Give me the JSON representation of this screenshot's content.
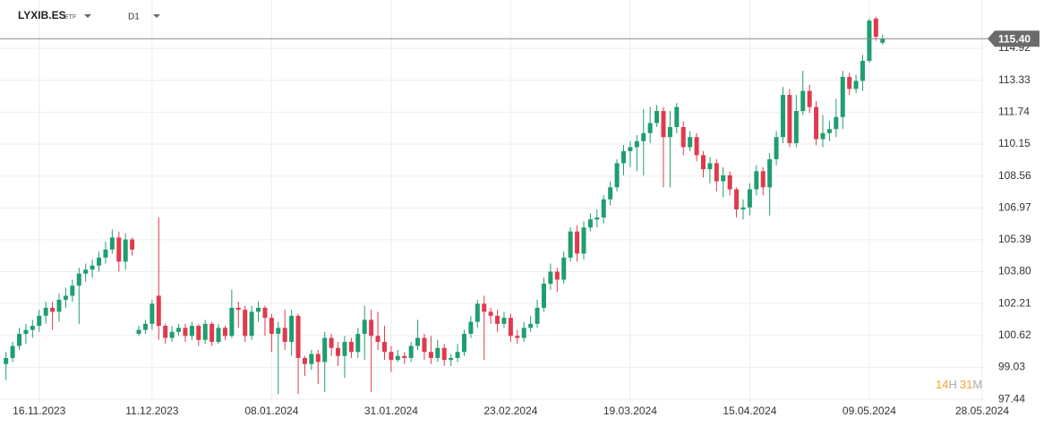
{
  "chart_data": {
    "type": "candlestick",
    "symbol": "LYXIB.ES",
    "asset_class": "ETF",
    "timeframe": "D1",
    "up_color": "#1f9e70",
    "down_color": "#e03a4e",
    "grid": true,
    "last_price": {
      "value": 115.4,
      "label": "115.40"
    },
    "countdown": {
      "hours": "14",
      "hours_unit": "H",
      "minutes": "31",
      "minutes_unit": "M"
    },
    "xlim": [
      -0.9,
      147.4
    ],
    "xticks": [
      {
        "value": 5,
        "label": "16.11.2023"
      },
      {
        "value": 22,
        "label": "11.12.2023"
      },
      {
        "value": 40,
        "label": "08.01.2024"
      },
      {
        "value": 58,
        "label": "31.01.2024"
      },
      {
        "value": 76,
        "label": "23.02.2024"
      },
      {
        "value": 94,
        "label": "19.03.2024"
      },
      {
        "value": 112,
        "label": "15.04.2024"
      },
      {
        "value": 130,
        "label": "09.05.2024"
      },
      {
        "value": 147,
        "label": "28.05.2024"
      }
    ],
    "ylim": [
      97.27,
      117.33
    ],
    "yticks": [
      97.44,
      99.03,
      100.62,
      102.21,
      {
        "value": 103.8,
        "label": "103.80"
      },
      105.39,
      106.97,
      108.56,
      110.15,
      111.74,
      113.33,
      114.92
    ],
    "open": [
      99.2,
      99.5,
      100.1,
      100.7,
      100.9,
      101.1,
      101.6,
      102.0,
      101.8,
      102.4,
      102.6,
      103.1,
      103.7,
      103.9,
      104.1,
      104.5,
      104.9,
      105.5,
      104.3,
      105.4,
      100.7,
      100.9,
      101.2,
      102.6,
      101.1,
      100.5,
      100.8,
      101.0,
      100.6,
      101.1,
      100.4,
      101.2,
      100.3,
      101.0,
      100.6,
      102.0,
      101.9,
      100.6,
      101.8,
      102.0,
      101.5,
      100.7,
      101.0,
      100.3,
      101.6,
      99.5,
      99.2,
      99.7,
      99.3,
      100.5,
      100.0,
      99.6,
      100.3,
      99.8,
      100.7,
      101.4,
      100.6,
      100.3,
      99.8,
      99.4,
      99.6,
      99.5,
      100.1,
      100.5,
      99.8,
      99.5,
      100.0,
      99.4,
      99.5,
      99.8,
      100.7,
      101.3,
      102.2,
      101.8,
      101.6,
      101.2,
      101.5,
      100.6,
      100.5,
      101.0,
      101.2,
      102.0,
      103.2,
      103.8,
      103.4,
      104.5,
      105.8,
      104.7,
      106.0,
      106.4,
      106.5,
      107.4,
      108.0,
      109.2,
      109.8,
      110.0,
      110.3,
      110.7,
      111.2,
      111.8,
      110.5,
      111.0,
      111.0,
      110.0,
      110.5,
      109.6,
      108.9,
      109.2,
      108.3,
      108.6,
      107.9,
      106.9,
      107.0,
      107.9,
      108.8,
      108.0,
      109.4,
      110.5,
      112.6,
      110.2,
      111.8,
      112.8,
      112.0,
      110.4,
      110.7,
      110.9,
      111.5,
      113.5,
      112.9,
      113.3,
      114.3,
      116.4,
      115.2
    ],
    "high": [
      99.8,
      100.3,
      101.0,
      101.2,
      101.4,
      101.9,
      102.3,
      102.3,
      102.7,
      103.0,
      103.4,
      104.0,
      104.2,
      104.4,
      104.8,
      105.3,
      105.9,
      105.8,
      105.7,
      105.5,
      101.1,
      101.4,
      102.4,
      106.5,
      101.2,
      101.1,
      101.2,
      101.2,
      101.3,
      101.2,
      101.4,
      101.3,
      101.2,
      101.1,
      102.9,
      102.3,
      102.1,
      102.1,
      102.3,
      102.1,
      101.7,
      101.3,
      101.9,
      101.9,
      101.7,
      99.6,
      99.9,
      99.9,
      100.8,
      100.7,
      100.3,
      100.6,
      100.5,
      101.0,
      102.1,
      101.9,
      101.8,
      101.1,
      100.1,
      99.9,
      99.8,
      100.3,
      101.4,
      100.7,
      100.6,
      100.4,
      100.2,
      99.7,
      100.2,
      100.9,
      101.6,
      102.4,
      102.6,
      102.0,
      101.9,
      101.8,
      101.7,
      100.9,
      101.3,
      101.6,
      102.4,
      103.5,
      104.2,
      104.0,
      104.8,
      106.0,
      106.1,
      106.3,
      106.7,
      106.9,
      107.6,
      108.3,
      109.4,
      110.1,
      110.3,
      110.6,
      111.9,
      112.0,
      112.1,
      112.0,
      111.8,
      112.2,
      111.3,
      110.8,
      110.7,
      109.8,
      109.5,
      109.4,
      109.0,
      108.8,
      108.0,
      107.4,
      108.2,
      109.1,
      109.0,
      109.7,
      110.8,
      113.0,
      112.9,
      112.6,
      113.8,
      113.1,
      112.3,
      111.6,
      111.3,
      112.4,
      113.8,
      113.7,
      113.6,
      114.6,
      116.4,
      116.5,
      115.6
    ],
    "low": [
      98.4,
      99.3,
      99.9,
      100.2,
      100.5,
      100.8,
      101.2,
      100.9,
      101.3,
      102.0,
      102.3,
      101.2,
      103.3,
      103.5,
      103.8,
      104.2,
      104.7,
      103.8,
      103.9,
      104.6,
      100.6,
      100.7,
      100.9,
      100.4,
      100.2,
      100.3,
      100.6,
      100.3,
      100.4,
      100.1,
      100.2,
      100.1,
      100.2,
      100.4,
      100.5,
      101.0,
      100.3,
      100.4,
      101.3,
      100.6,
      99.8,
      97.7,
      99.9,
      99.6,
      97.7,
      98.6,
      98.9,
      98.2,
      97.8,
      99.6,
      99.1,
      98.5,
      99.5,
      99.5,
      99.4,
      97.8,
      99.9,
      99.4,
      98.8,
      99.3,
      99.2,
      99.3,
      99.9,
      99.4,
      99.2,
      99.3,
      99.1,
      99.1,
      99.3,
      99.6,
      100.5,
      101.0,
      99.4,
      101.2,
      100.8,
      101.0,
      100.3,
      100.2,
      100.3,
      100.8,
      101.0,
      101.8,
      102.9,
      102.8,
      103.2,
      104.3,
      104.3,
      104.4,
      105.8,
      106.0,
      106.2,
      107.1,
      107.8,
      108.6,
      109.0,
      108.8,
      108.6,
      110.2,
      111.0,
      108.0,
      108.0,
      110.7,
      109.6,
      109.8,
      109.3,
      108.5,
      108.2,
      107.8,
      107.5,
      107.6,
      106.5,
      106.4,
      106.6,
      107.6,
      107.6,
      106.6,
      109.1,
      110.2,
      110.0,
      110.0,
      111.6,
      111.7,
      110.1,
      110.0,
      110.3,
      110.5,
      110.9,
      112.6,
      112.7,
      112.8,
      114.2,
      115.3,
      115.1
    ],
    "close": [
      99.5,
      100.1,
      100.7,
      100.9,
      101.1,
      101.6,
      102.0,
      101.8,
      102.4,
      102.6,
      103.1,
      103.7,
      103.9,
      104.1,
      104.5,
      104.9,
      105.5,
      104.3,
      105.4,
      104.9,
      100.9,
      101.2,
      102.2,
      101.1,
      100.5,
      100.8,
      101.0,
      100.6,
      101.1,
      100.4,
      101.2,
      100.3,
      101.0,
      100.6,
      102.0,
      101.9,
      100.6,
      101.8,
      102.0,
      101.5,
      100.7,
      101.0,
      100.3,
      101.6,
      99.5,
      99.2,
      99.7,
      99.3,
      100.5,
      100.0,
      99.6,
      100.3,
      99.8,
      100.7,
      101.4,
      100.6,
      100.3,
      99.8,
      99.4,
      99.6,
      99.5,
      100.1,
      100.5,
      99.8,
      99.5,
      100.0,
      99.4,
      99.5,
      99.8,
      100.7,
      101.3,
      102.2,
      101.8,
      101.6,
      101.2,
      101.5,
      100.6,
      100.5,
      101.0,
      101.2,
      102.0,
      103.2,
      103.8,
      103.4,
      104.5,
      105.8,
      104.7,
      106.0,
      106.4,
      106.5,
      107.4,
      108.0,
      109.2,
      109.8,
      110.0,
      110.3,
      110.7,
      111.2,
      111.8,
      110.5,
      111.0,
      112.0,
      110.0,
      110.5,
      109.6,
      108.9,
      109.2,
      108.3,
      108.6,
      107.9,
      106.9,
      107.0,
      107.9,
      108.8,
      108.0,
      109.4,
      110.5,
      112.6,
      110.2,
      111.8,
      112.8,
      112.0,
      110.4,
      110.7,
      110.9,
      111.5,
      113.5,
      112.9,
      113.3,
      114.3,
      116.3,
      115.5,
      115.4
    ]
  }
}
